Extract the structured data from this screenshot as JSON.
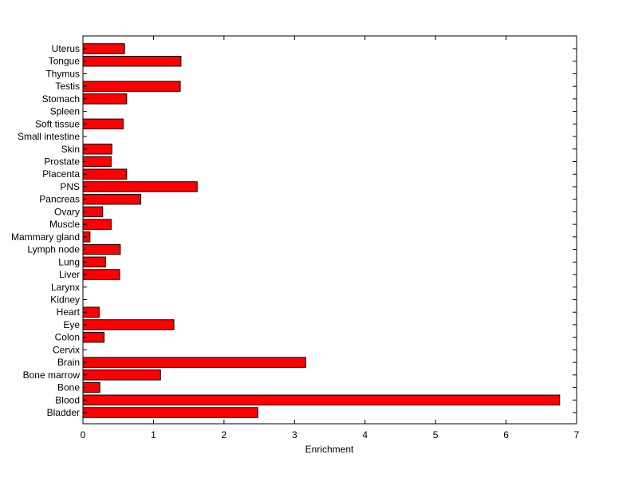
{
  "chart_data": {
    "type": "bar",
    "orientation": "horizontal",
    "categories": [
      "Uterus",
      "Tongue",
      "Thymus",
      "Testis",
      "Stomach",
      "Spleen",
      "Soft tissue",
      "Small intestine",
      "Skin",
      "Prostate",
      "Placenta",
      "PNS",
      "Pancreas",
      "Ovary",
      "Muscle",
      "Mammary gland",
      "Lymph node",
      "Lung",
      "Liver",
      "Larynx",
      "Kidney",
      "Heart",
      "Eye",
      "Colon",
      "Cervix",
      "Brain",
      "Bone marrow",
      "Bone",
      "Blood",
      "Bladder"
    ],
    "values": [
      0.59,
      1.39,
      0,
      1.38,
      0.62,
      0,
      0.57,
      0,
      0.41,
      0.4,
      0.62,
      1.62,
      0.82,
      0.28,
      0.4,
      0.1,
      0.53,
      0.32,
      0.52,
      0,
      0,
      0.23,
      1.29,
      0.3,
      0,
      3.16,
      1.1,
      0.24,
      6.76,
      2.48
    ],
    "xlabel": "Enrichment",
    "ylabel": "",
    "title": "",
    "xlim": [
      0,
      7
    ],
    "xticks": [
      "0",
      "1",
      "2",
      "3",
      "4",
      "5",
      "6",
      "7"
    ],
    "bar_color": "#ff0000",
    "bar_edge_color": "#000000",
    "grid": false,
    "legend": "none"
  }
}
